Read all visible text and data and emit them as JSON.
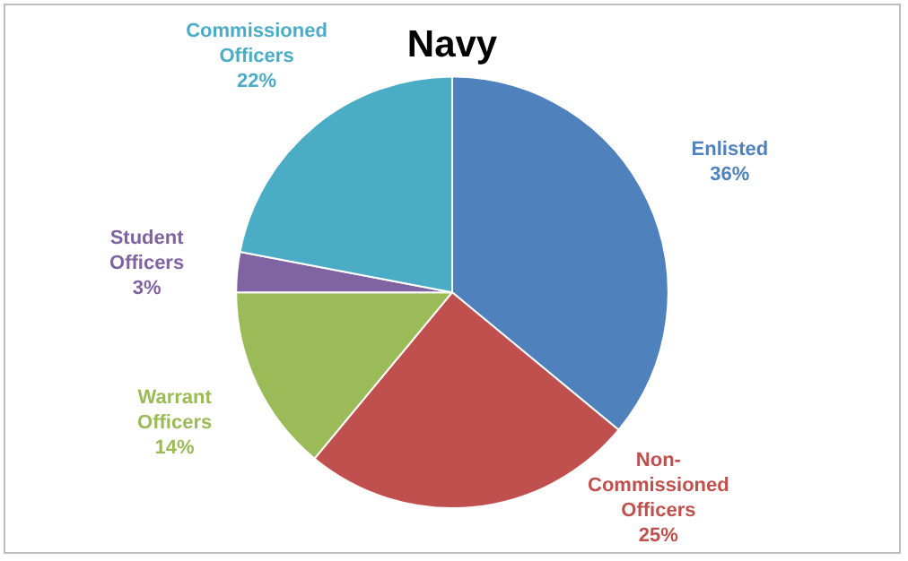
{
  "chart_data": {
    "type": "pie",
    "title": "Navy",
    "categories": [
      "Enlisted",
      "Non-Commissioned Officers",
      "Warrant Officers",
      "Student Officers",
      "Commissioned Officers"
    ],
    "values": [
      36,
      25,
      14,
      3,
      22
    ],
    "colors": [
      "#4f81bd",
      "#c0504d",
      "#9bbb59",
      "#8064a2",
      "#4bacc6"
    ],
    "value_labels": [
      "36%",
      "25%",
      "14%",
      "3%",
      "22%"
    ],
    "legend": false
  }
}
